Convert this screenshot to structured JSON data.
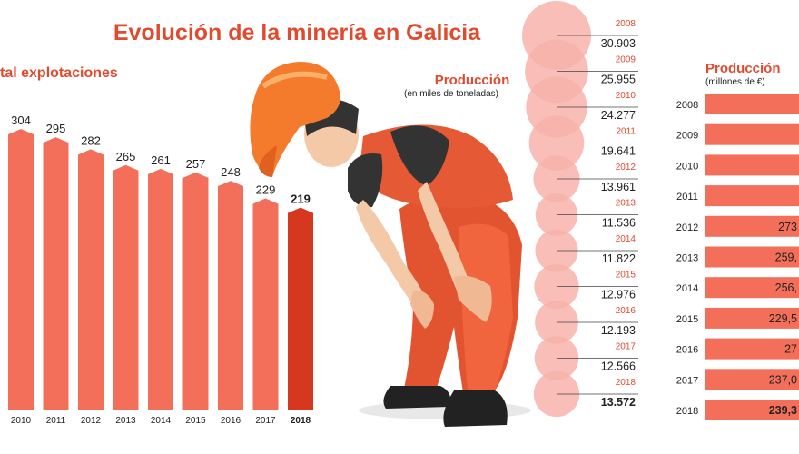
{
  "title": "Evolución de la minería en Galicia",
  "colors": {
    "bar": "#f46f5a",
    "bar_highlight": "#d6371f",
    "circle": "#f7b3aa",
    "title": "#e04b2f",
    "text": "#222222",
    "hbar": "#f46f5a"
  },
  "illustration": "bent-over-miner-figure-in-orange-helmet-and-overalls",
  "chart_data": [
    {
      "type": "bar",
      "title": "Total explotaciones",
      "title_visible": "tal explotaciones",
      "categories": [
        "2010",
        "2011",
        "2012",
        "2013",
        "2014",
        "2015",
        "2016",
        "2017",
        "2018"
      ],
      "values": [
        304,
        295,
        282,
        265,
        261,
        257,
        248,
        229,
        219
      ],
      "highlight": "2018",
      "grid": false
    },
    {
      "type": "table",
      "title": "Producción",
      "subtitle": "(en miles de toneladas)",
      "categories": [
        "2008",
        "2009",
        "2010",
        "2011",
        "2012",
        "2013",
        "2014",
        "2015",
        "2016",
        "2017",
        "2018"
      ],
      "values": [
        30903,
        25955,
        24277,
        19641,
        13961,
        11536,
        11822,
        12976,
        12193,
        12566,
        13572
      ],
      "labels": [
        "30.903",
        "25.955",
        "24.277",
        "19.641",
        "13.961",
        "11.536",
        "11.822",
        "12.976",
        "12.193",
        "12.566",
        "13.572"
      ],
      "highlight": "2018"
    },
    {
      "type": "bar",
      "orientation": "horizontal",
      "title": "Producción",
      "subtitle": "(millones de €)",
      "categories": [
        "2008",
        "2009",
        "2010",
        "2011",
        "2012",
        "2013",
        "2014",
        "2015",
        "2016",
        "2017",
        "2018"
      ],
      "labels": [
        "",
        "",
        "",
        "",
        "273",
        "259,",
        "256,",
        "229,5",
        "27",
        "237,0",
        "239,3"
      ],
      "highlight": "2018"
    }
  ]
}
